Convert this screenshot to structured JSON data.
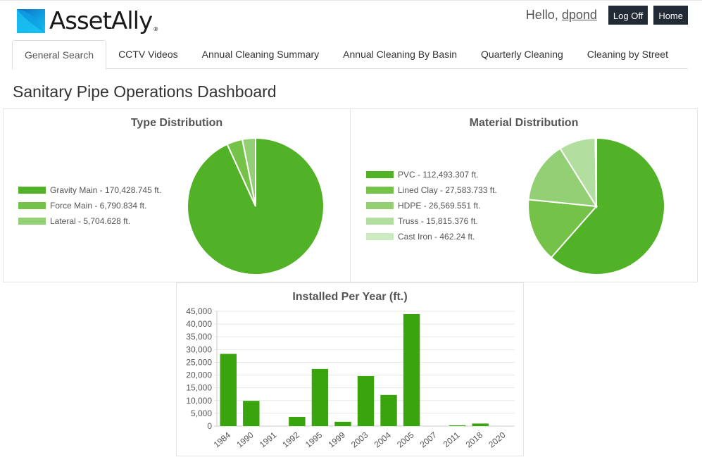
{
  "app": {
    "logo_text": "AssetAlly",
    "logo_reg": "®"
  },
  "user": {
    "hello": "Hello,",
    "name": "dpond",
    "logoff_label": "Log Off",
    "home_label": "Home"
  },
  "tabs": [
    {
      "label": "General Search",
      "active": true
    },
    {
      "label": "CCTV Videos"
    },
    {
      "label": "Annual Cleaning Summary"
    },
    {
      "label": "Annual Cleaning By Basin"
    },
    {
      "label": "Quarterly Cleaning"
    },
    {
      "label": "Cleaning by Street"
    }
  ],
  "page_title": "Sanitary Pipe Operations Dashboard",
  "chart_data": [
    {
      "type": "pie",
      "title": "Type Distribution",
      "unit": "ft.",
      "slices": [
        {
          "label": "Gravity Main - 170,428.745 ft.",
          "value": 170428.745,
          "color": "#52b227"
        },
        {
          "label": "Force Main - 6,790.834 ft.",
          "value": 6790.834,
          "color": "#74c348"
        },
        {
          "label": "Lateral - 5,704.628 ft.",
          "value": 5704.628,
          "color": "#93d075"
        }
      ],
      "legend": "left"
    },
    {
      "type": "pie",
      "title": "Material Distribution",
      "unit": "ft.",
      "slices": [
        {
          "label": "PVC - 112,493.307 ft.",
          "value": 112493.307,
          "color": "#52b227"
        },
        {
          "label": "Lined Clay - 27,583.733 ft.",
          "value": 27583.733,
          "color": "#74c348"
        },
        {
          "label": "HDPE - 26,569.551 ft.",
          "value": 26569.551,
          "color": "#93d075"
        },
        {
          "label": "Truss - 15,815.376 ft.",
          "value": 15815.376,
          "color": "#b2dea0"
        },
        {
          "label": "Cast Iron - 462.24 ft.",
          "value": 462.24,
          "color": "#cdeac0"
        }
      ],
      "legend": "left"
    },
    {
      "type": "bar",
      "title": "Installed Per Year (ft.)",
      "categories": [
        "1984",
        "1990",
        "1991",
        "1992",
        "1995",
        "1999",
        "2003",
        "2004",
        "2005",
        "2007",
        "2011",
        "2018",
        "2020"
      ],
      "values": [
        28300,
        9900,
        0,
        3600,
        22400,
        1700,
        19600,
        12200,
        43900,
        0,
        300,
        1000,
        0
      ],
      "ylim": [
        0,
        45000
      ],
      "yticks": [
        "0",
        "5,000",
        "10,000",
        "15,000",
        "20,000",
        "25,000",
        "30,000",
        "35,000",
        "40,000",
        "45,000"
      ],
      "color": "#3aa40c",
      "grid": true
    }
  ]
}
